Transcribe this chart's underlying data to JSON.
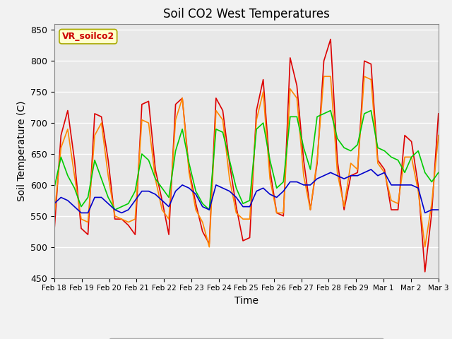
{
  "title": "Soil CO2 West Temperatures",
  "xlabel": "Time",
  "ylabel": "Soil Temperature (C)",
  "ylim": [
    450,
    860
  ],
  "yticks": [
    450,
    500,
    550,
    600,
    650,
    700,
    750,
    800,
    850
  ],
  "xtick_labels": [
    "Feb 18",
    "Feb 19",
    "Feb 20",
    "Feb 21",
    "Feb 22",
    "Feb 23",
    "Feb 24",
    "Feb 25",
    "Feb 26",
    "Feb 27",
    "Feb 28",
    "Feb 29",
    "Mar 1",
    "Mar 2",
    "Mar 3"
  ],
  "annotation_text": "VR_soilco2",
  "annotation_color": "#cc0000",
  "annotation_bg": "#ffffcc",
  "annotation_border": "#aaaa00",
  "colors": {
    "TCW_1": "#dd0000",
    "TCW_2": "#ff8800",
    "TCW_3": "#00cc00",
    "TCW_4": "#0000cc"
  },
  "background_color": "#e8e8e8",
  "grid_color": "#ffffff",
  "fig_bg": "#f2f2f2",
  "TCW_1": [
    525,
    680,
    720,
    640,
    530,
    520,
    715,
    710,
    640,
    545,
    545,
    535,
    520,
    730,
    735,
    625,
    575,
    520,
    730,
    740,
    625,
    570,
    525,
    505,
    740,
    720,
    635,
    565,
    510,
    515,
    720,
    770,
    625,
    555,
    550,
    805,
    760,
    640,
    560,
    635,
    800,
    835,
    640,
    560,
    615,
    620,
    800,
    795,
    640,
    625,
    560,
    560,
    680,
    670,
    600,
    460,
    555,
    715
  ],
  "TCW_2": [
    550,
    660,
    690,
    615,
    545,
    540,
    680,
    700,
    615,
    550,
    545,
    540,
    545,
    705,
    700,
    610,
    560,
    545,
    705,
    740,
    620,
    560,
    540,
    500,
    720,
    705,
    610,
    555,
    545,
    545,
    705,
    750,
    610,
    555,
    555,
    755,
    740,
    615,
    560,
    640,
    775,
    775,
    620,
    565,
    635,
    625,
    775,
    770,
    635,
    620,
    575,
    570,
    645,
    645,
    590,
    500,
    570,
    680
  ],
  "TCW_3": [
    595,
    645,
    615,
    595,
    565,
    580,
    640,
    610,
    580,
    560,
    565,
    570,
    590,
    650,
    640,
    610,
    595,
    580,
    655,
    690,
    635,
    590,
    570,
    560,
    690,
    685,
    640,
    595,
    570,
    575,
    690,
    700,
    640,
    595,
    605,
    710,
    710,
    660,
    625,
    710,
    715,
    720,
    675,
    660,
    655,
    665,
    715,
    720,
    660,
    655,
    645,
    640,
    620,
    645,
    655,
    620,
    605,
    620
  ],
  "TCW_4": [
    570,
    580,
    575,
    565,
    555,
    555,
    580,
    580,
    570,
    560,
    555,
    560,
    575,
    590,
    590,
    585,
    575,
    565,
    590,
    600,
    595,
    585,
    565,
    560,
    600,
    595,
    590,
    580,
    565,
    565,
    590,
    595,
    585,
    580,
    590,
    605,
    605,
    600,
    600,
    610,
    615,
    620,
    615,
    610,
    615,
    615,
    620,
    625,
    615,
    620,
    600,
    600,
    600,
    600,
    595,
    555,
    560,
    560
  ]
}
